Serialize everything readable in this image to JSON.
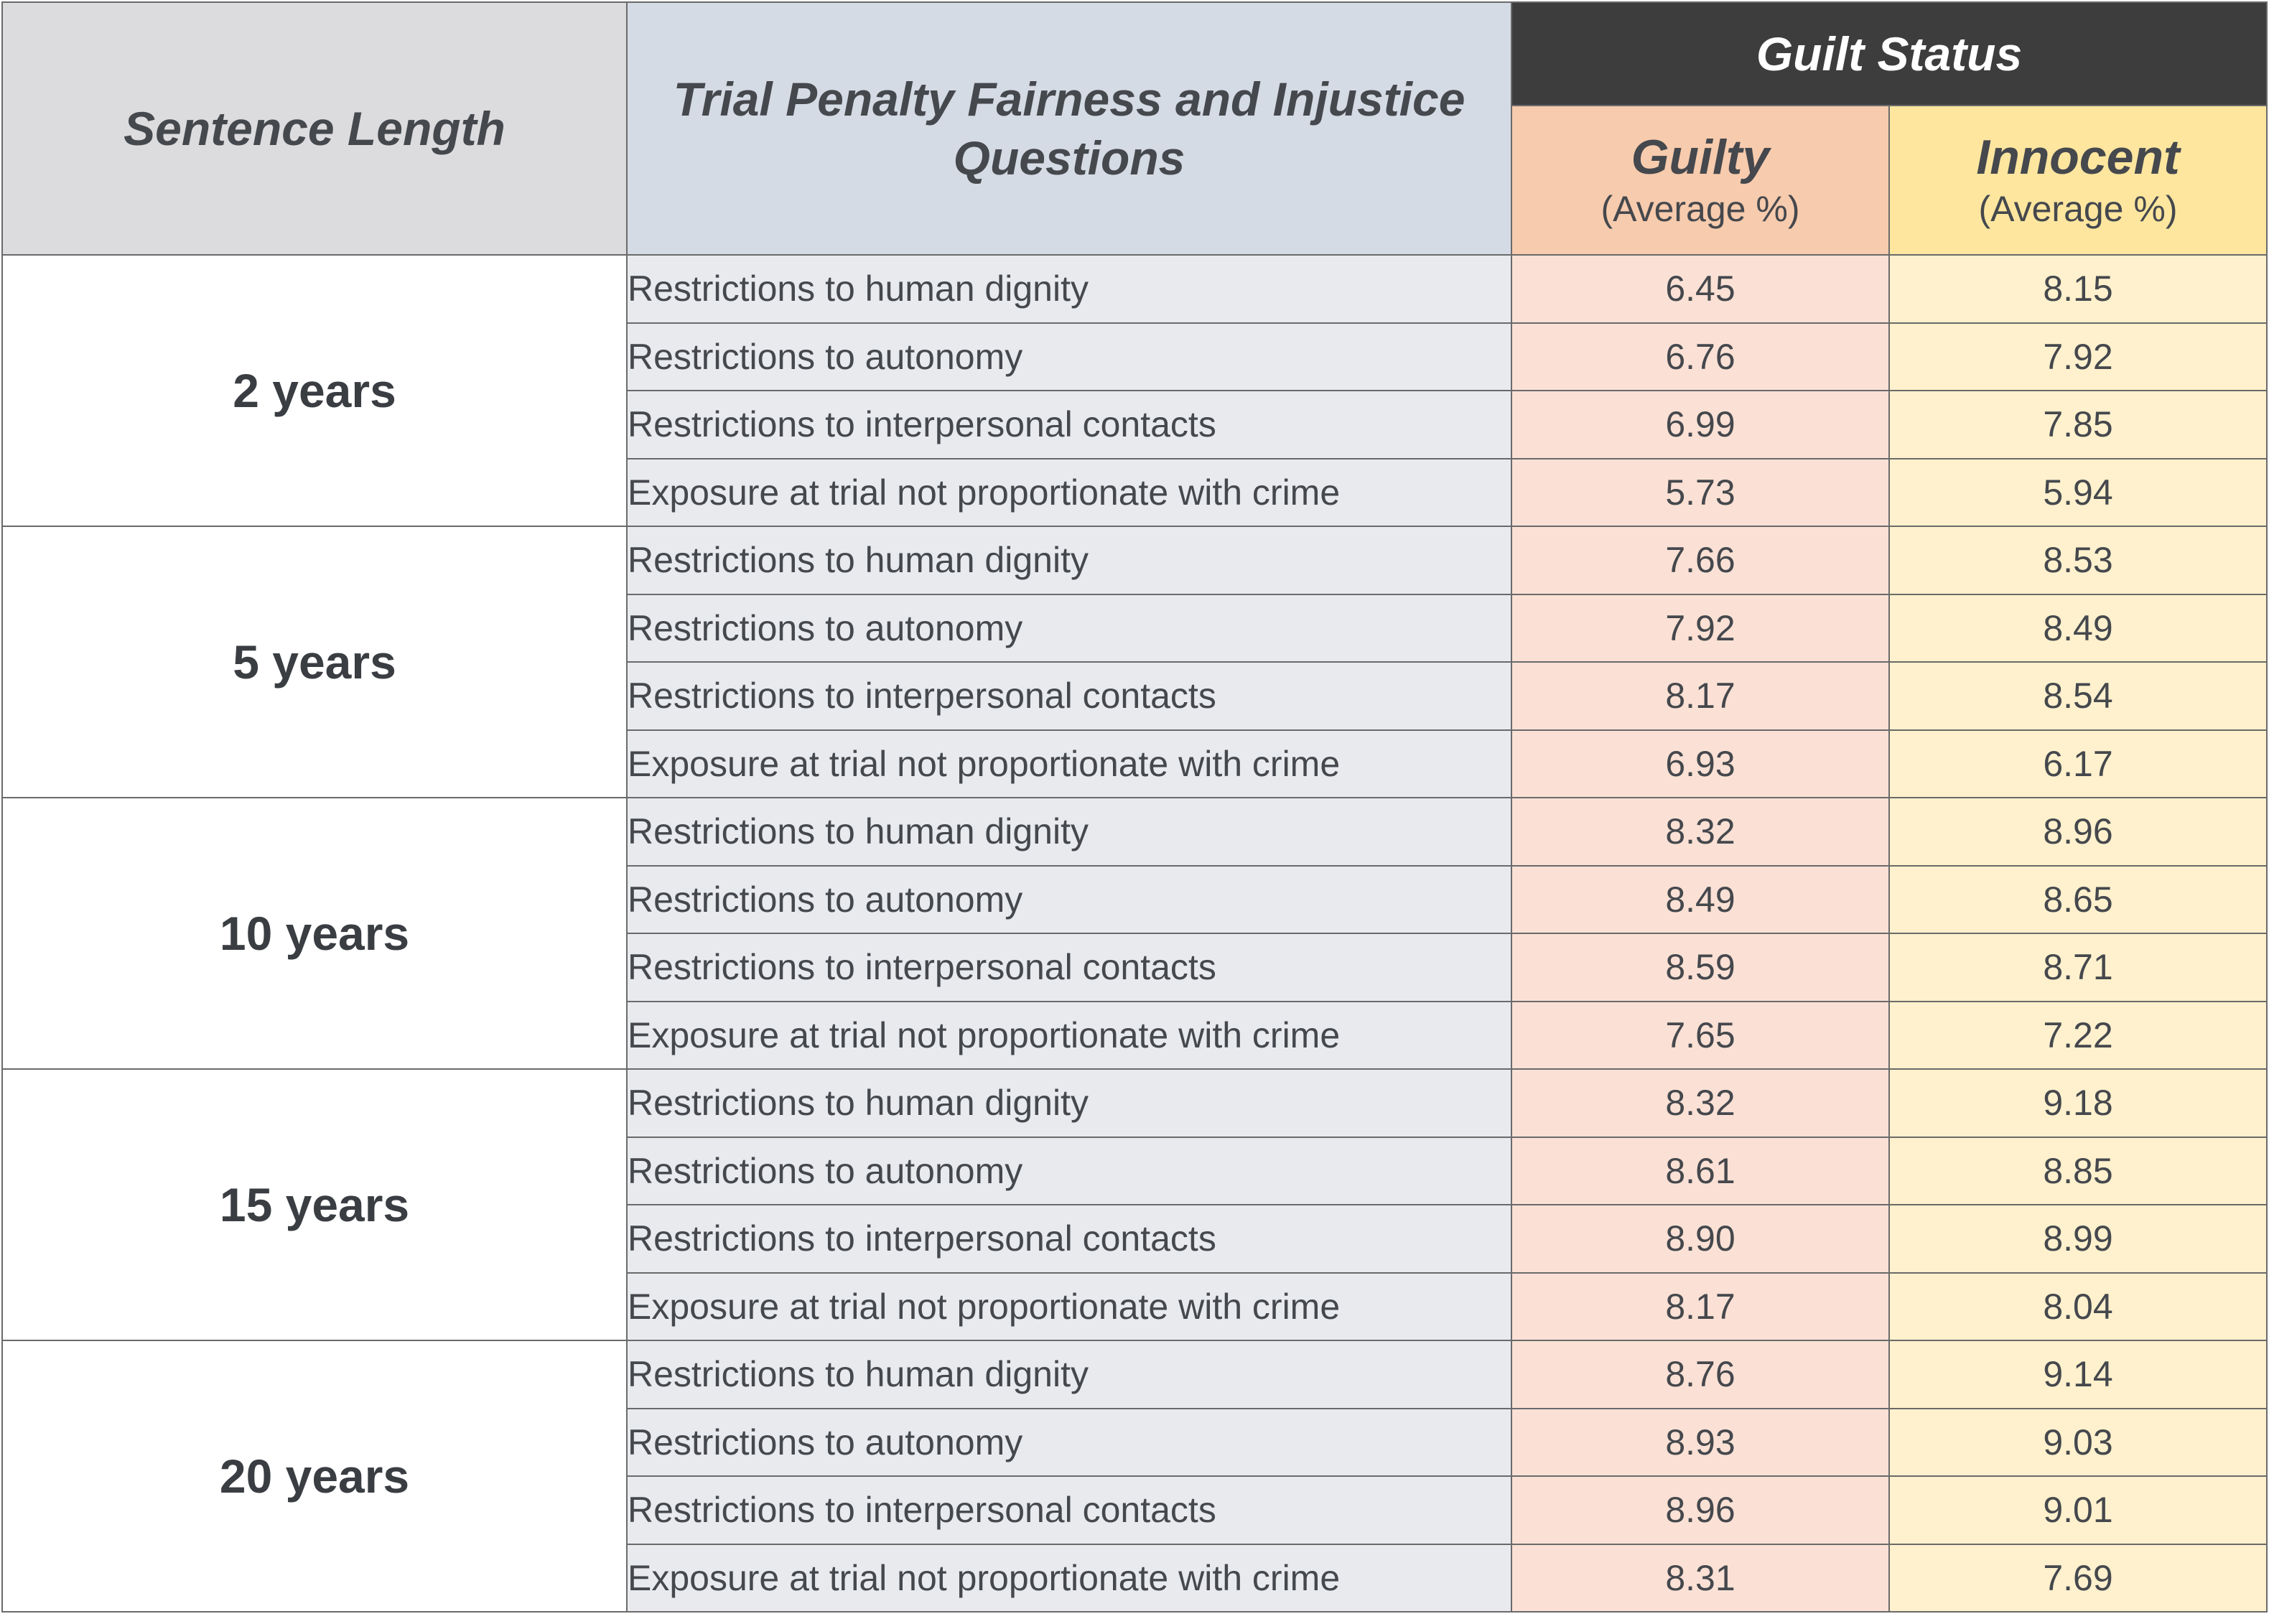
{
  "header": {
    "sentence_length": "Sentence Length",
    "questions": "Trial Penalty Fairness and Injustice Questions",
    "guilt_status": "Guilt Status",
    "guilty": "Guilty",
    "guilty_note": "(Average %)",
    "innocent": "Innocent",
    "innocent_note": "(Average %)"
  },
  "colors": {
    "header_dark": "#3d3d3d",
    "guilty_header": "#f7cbad",
    "guilty_cell": "#fbe1d5",
    "innocent_header": "#fee69f",
    "innocent_cell": "#fff1cd",
    "question_cell": "#e8eaee"
  },
  "groups": [
    {
      "length": "2 years",
      "rows": [
        {
          "question": "Restrictions to human dignity",
          "guilty": "6.45",
          "innocent": "8.15"
        },
        {
          "question": "Restrictions to autonomy",
          "guilty": "6.76",
          "innocent": "7.92"
        },
        {
          "question": "Restrictions to interpersonal contacts",
          "guilty": "6.99",
          "innocent": "7.85"
        },
        {
          "question": "Exposure at trial not proportionate with crime",
          "guilty": "5.73",
          "innocent": "5.94"
        }
      ]
    },
    {
      "length": "5 years",
      "rows": [
        {
          "question": "Restrictions to human dignity",
          "guilty": "7.66",
          "innocent": "8.53"
        },
        {
          "question": "Restrictions to autonomy",
          "guilty": "7.92",
          "innocent": "8.49"
        },
        {
          "question": "Restrictions to interpersonal contacts",
          "guilty": "8.17",
          "innocent": "8.54"
        },
        {
          "question": "Exposure at trial not proportionate with crime",
          "guilty": "6.93",
          "innocent": "6.17"
        }
      ]
    },
    {
      "length": "10 years",
      "rows": [
        {
          "question": "Restrictions to human dignity",
          "guilty": "8.32",
          "innocent": "8.96"
        },
        {
          "question": "Restrictions to autonomy",
          "guilty": "8.49",
          "innocent": "8.65"
        },
        {
          "question": "Restrictions to interpersonal contacts",
          "guilty": "8.59",
          "innocent": "8.71"
        },
        {
          "question": "Exposure at trial not proportionate with crime",
          "guilty": "7.65",
          "innocent": "7.22"
        }
      ]
    },
    {
      "length": "15 years",
      "rows": [
        {
          "question": "Restrictions to human dignity",
          "guilty": "8.32",
          "innocent": "9.18"
        },
        {
          "question": "Restrictions to autonomy",
          "guilty": "8.61",
          "innocent": "8.85"
        },
        {
          "question": "Restrictions to interpersonal contacts",
          "guilty": "8.90",
          "innocent": "8.99"
        },
        {
          "question": "Exposure at trial not proportionate with crime",
          "guilty": "8.17",
          "innocent": "8.04"
        }
      ]
    },
    {
      "length": "20 years",
      "rows": [
        {
          "question": "Restrictions to human dignity",
          "guilty": "8.76",
          "innocent": "9.14"
        },
        {
          "question": "Restrictions to autonomy",
          "guilty": "8.93",
          "innocent": "9.03"
        },
        {
          "question": "Restrictions to interpersonal contacts",
          "guilty": "8.96",
          "innocent": "9.01"
        },
        {
          "question": "Exposure at trial not proportionate with crime",
          "guilty": "8.31",
          "innocent": "7.69"
        }
      ]
    }
  ]
}
